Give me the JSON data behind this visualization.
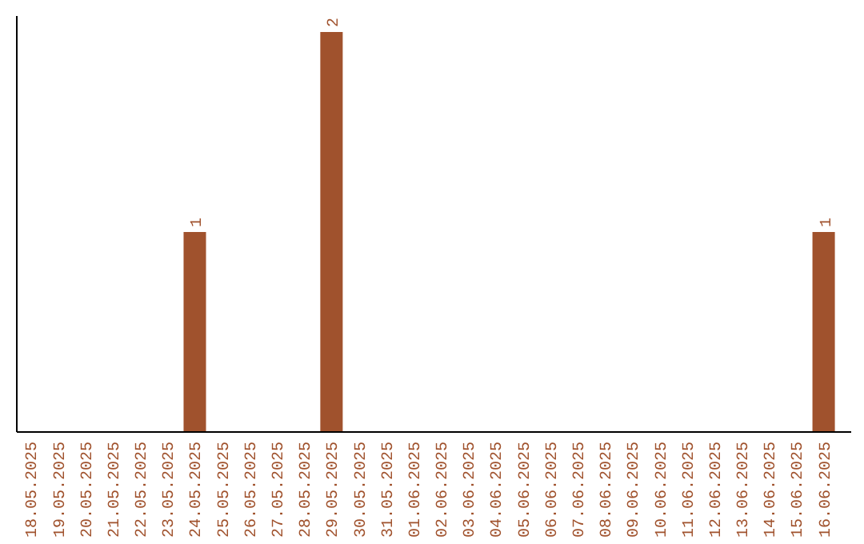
{
  "chart_data": {
    "type": "bar",
    "categories": [
      "18.05.2025",
      "19.05.2025",
      "20.05.2025",
      "21.05.2025",
      "22.05.2025",
      "23.05.2025",
      "24.05.2025",
      "25.05.2025",
      "26.05.2025",
      "27.05.2025",
      "28.05.2025",
      "29.05.2025",
      "30.05.2025",
      "31.05.2025",
      "01.06.2025",
      "02.06.2025",
      "03.06.2025",
      "04.06.2025",
      "05.06.2025",
      "06.06.2025",
      "07.06.2025",
      "08.06.2025",
      "09.06.2025",
      "10.06.2025",
      "11.06.2025",
      "12.06.2025",
      "13.06.2025",
      "14.06.2025",
      "15.06.2025",
      "16.06.2025"
    ],
    "values": [
      0,
      0,
      0,
      0,
      0,
      0,
      1,
      0,
      0,
      0,
      0,
      2,
      0,
      0,
      0,
      0,
      0,
      0,
      0,
      0,
      0,
      0,
      0,
      0,
      0,
      0,
      0,
      0,
      0,
      1
    ],
    "value_labels": [
      null,
      null,
      null,
      null,
      null,
      null,
      "1",
      null,
      null,
      null,
      null,
      "2",
      null,
      null,
      null,
      null,
      null,
      null,
      null,
      null,
      null,
      null,
      null,
      null,
      null,
      null,
      null,
      null,
      null,
      "1"
    ],
    "color": "#a0522d",
    "ylim": [
      0,
      2
    ],
    "tick_labels": "x"
  }
}
